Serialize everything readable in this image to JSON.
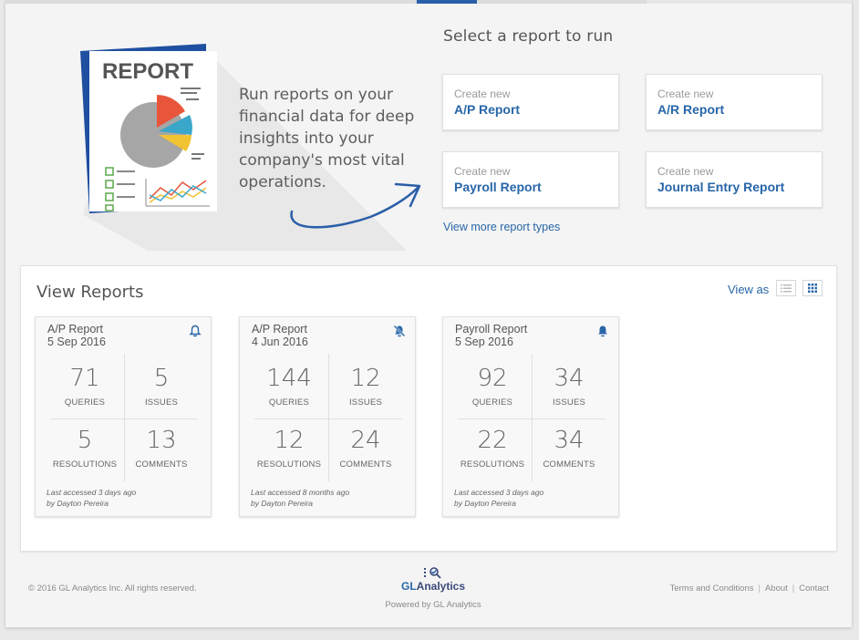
{
  "hero": {
    "art_title": "REPORT",
    "tagline": "Run reports on your financial data for deep insights into your company's most vital operations."
  },
  "select": {
    "title": "Select a report to run",
    "cards": [
      {
        "small": "Create new",
        "big": "A/P Report"
      },
      {
        "small": "Create new",
        "big": "A/R Report"
      },
      {
        "small": "Create new",
        "big": "Payroll Report"
      },
      {
        "small": "Create new",
        "big": "Journal Entry Report"
      }
    ],
    "view_more": "View more report types"
  },
  "view_reports": {
    "title": "View Reports",
    "view_as": "View as",
    "reports": [
      {
        "name": "A/P Report",
        "date": "5 Sep 2016",
        "bell": "bell-icon",
        "queries": "71",
        "issues": "5",
        "resolutions": "5",
        "comments": "13",
        "last_accessed": "Last accessed 3 days ago",
        "by": "by Dayton Pereira"
      },
      {
        "name": "A/P Report",
        "date": "4 Jun 2016",
        "bell": "bell-off-icon",
        "queries": "144",
        "issues": "12",
        "resolutions": "12",
        "comments": "24",
        "last_accessed": "Last accessed 8 months ago",
        "by": "by Dayton Pereira"
      },
      {
        "name": "Payroll Report",
        "date": "5 Sep 2016",
        "bell": "bell-filled-icon",
        "queries": "92",
        "issues": "34",
        "resolutions": "22",
        "comments": "34",
        "last_accessed": "Last accessed 3 days ago",
        "by": "by Dayton Pereira"
      }
    ],
    "labels": {
      "queries": "QUERIES",
      "issues": "ISSUES",
      "resolutions": "RESOLUTIONS",
      "comments": "COMMENTS"
    }
  },
  "footer": {
    "copyright": "© 2016 GL Analytics Inc. All rights reserved.",
    "brand_gl": "GL",
    "brand_rest": "Analytics",
    "powered": "Powered by GL Analytics",
    "links": [
      "Terms and Conditions",
      "About",
      "Contact"
    ]
  },
  "colors": {
    "accent": "#2866a8",
    "report_blue": "#1f4fa0",
    "chart_red": "#e8553a",
    "chart_teal": "#3aa6c9",
    "chart_yellow": "#f1c232",
    "chart_gray": "#a6a6a6",
    "check_green": "#5aa84a"
  }
}
